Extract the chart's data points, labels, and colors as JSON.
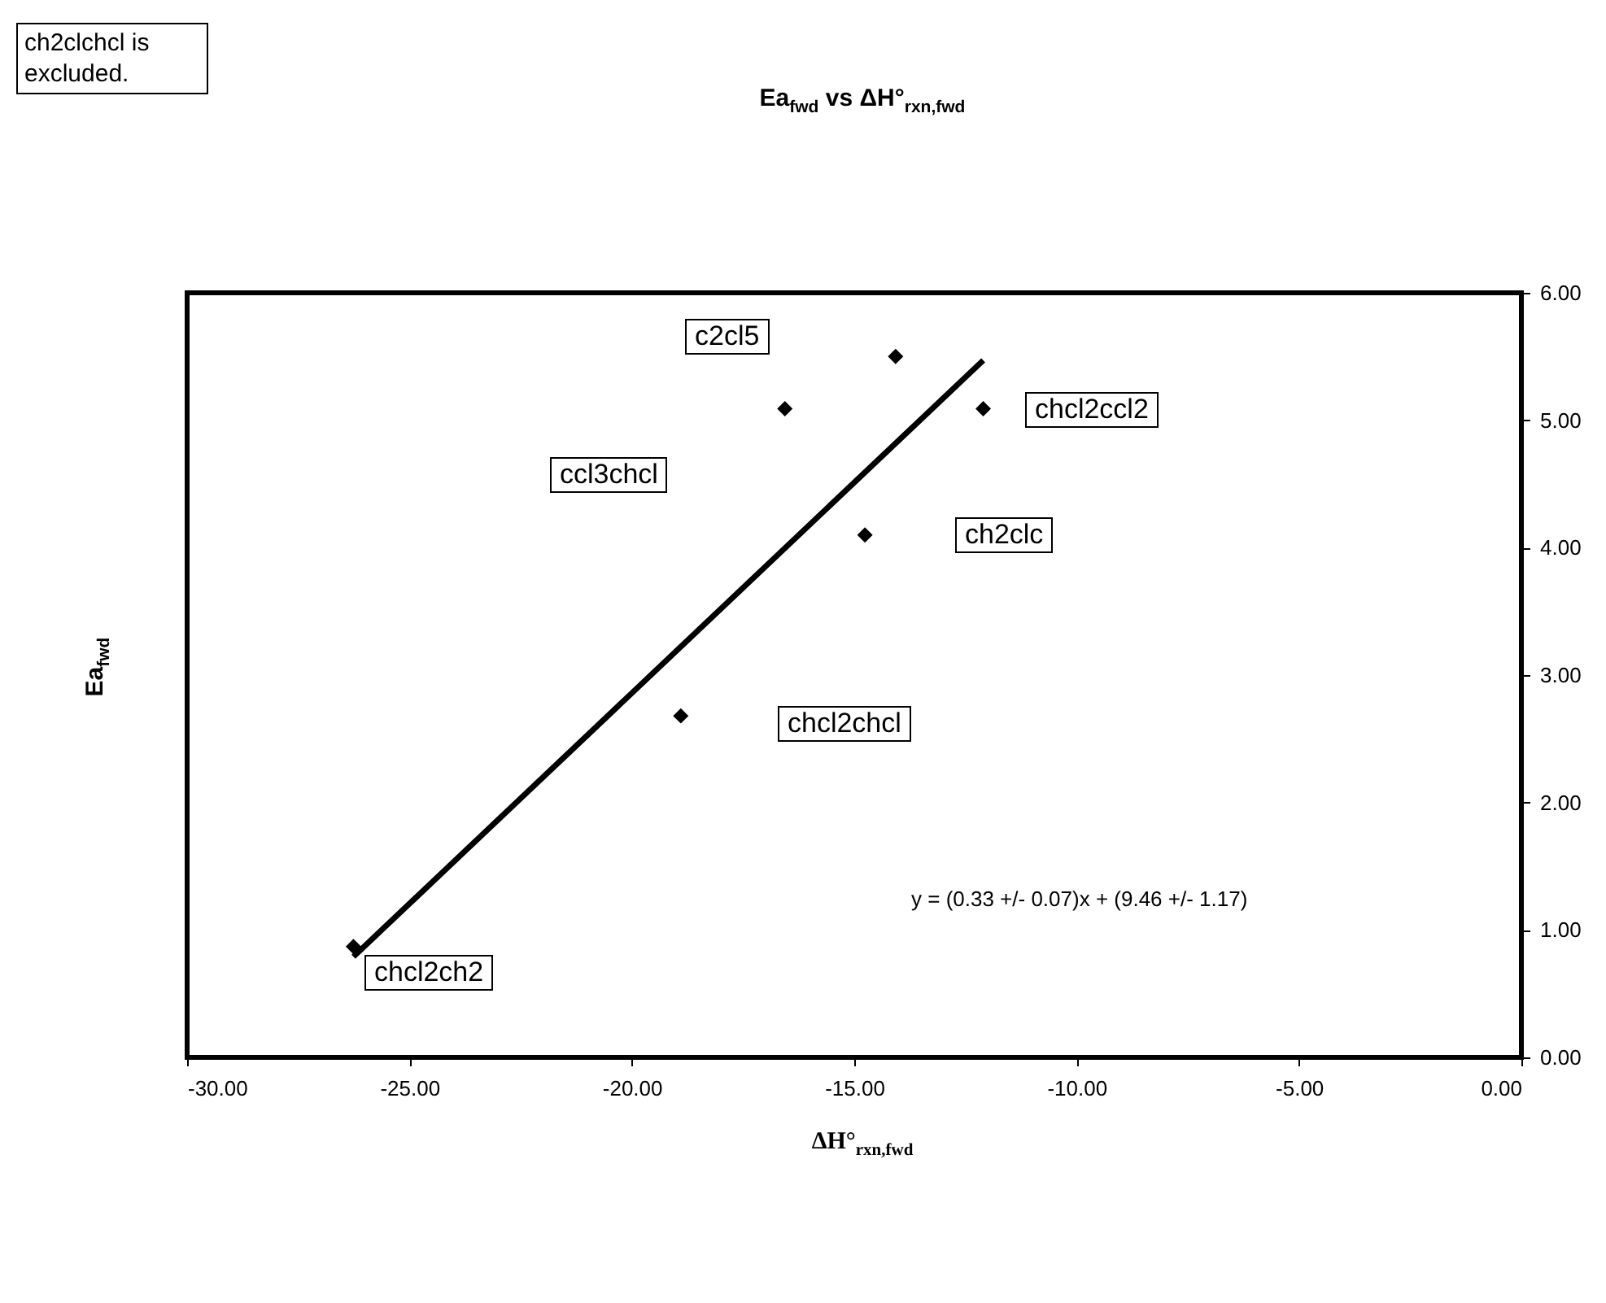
{
  "chart_data": {
    "type": "scatter",
    "title": "Ea$_{fwd}$ vs ΔH°$_{rxn,fwd}$",
    "xlabel": "ΔH°$_{rxn,fwd}$",
    "ylabel": "Ea$_{fwd}$",
    "series": [
      {
        "color": "#000000",
        "marker": "diamond",
        "x": [
          -14.07,
          -12.1,
          -16.56,
          -14.76,
          -18.9,
          -26.26
        ],
        "values": [
          5.5,
          5.09,
          5.09,
          4.1,
          2.68,
          0.87
        ]
      },
      {
        "type": "line",
        "color": "#000000",
        "marker": "none",
        "x": [
          -26.26,
          -12.1
        ],
        "values": [
          0.79,
          5.47
        ]
      }
    ],
    "annotations": [
      "c2cl5",
      "chcl2ccl2",
      "ccl3chcl",
      "ch2clc",
      "chcl2chcl",
      "chcl2ch2",
      "ch2clchcl is excluded.",
      "y = (0.33 +/- 0.07)x + (9.46 +/- 1.17)"
    ],
    "xlim": [
      -30,
      0
    ],
    "xticks": [
      {
        "value": -30,
        "label": "-30.00"
      },
      {
        "value": -25,
        "label": "-25.00"
      },
      {
        "value": -20,
        "label": "-20.00"
      },
      {
        "value": -15,
        "label": "-15.00"
      },
      {
        "value": -10,
        "label": "-10.00"
      },
      {
        "value": -5,
        "label": "-5.00"
      },
      {
        "value": 0,
        "label": "0.00"
      }
    ],
    "ylim": [
      0,
      6
    ],
    "yticks": [
      {
        "value": 0,
        "label": "0.00"
      },
      {
        "value": 1,
        "label": "1.00"
      },
      {
        "value": 2,
        "label": "2.00"
      },
      {
        "value": 3,
        "label": "3.00"
      },
      {
        "value": 4,
        "label": "4.00"
      },
      {
        "value": 5,
        "label": "5.00"
      },
      {
        "value": 6,
        "label": "6.00"
      }
    ],
    "grid": false
  }
}
